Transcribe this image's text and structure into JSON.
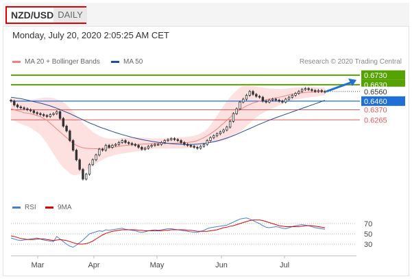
{
  "header": {
    "symbol": "NZD/USD",
    "period": "DAILY",
    "datetime": "Monday, July 20, 2020 2:05:25 AM CET"
  },
  "legend": {
    "ma20_bb": "MA 20 + Bollinger Bands",
    "ma50": "MA 50",
    "credit": "Research © 2020 Trading Central",
    "rsi": "RSI",
    "rsi_ma": "9MA"
  },
  "colors": {
    "ma20": "#f08080",
    "bollinger_fill": "#fde0e0",
    "ma50": "#1f4e9c",
    "rsi": "#4a7fd6",
    "rsi_ma": "#e00000",
    "resistance": "#55a300",
    "pivot": "#1f6fd6",
    "support": "#e85858",
    "candle": "#333333"
  },
  "chart_data": [
    {
      "type": "line",
      "title": "",
      "x_labels": [
        "Mar",
        "Apr",
        "May",
        "Jun",
        "Jul"
      ],
      "ylim": [
        0.545,
        0.68
      ],
      "levels": [
        {
          "value": 0.673,
          "label": "0.6730",
          "kind": "resistance"
        },
        {
          "value": 0.663,
          "label": "0.6630",
          "kind": "resistance"
        },
        {
          "value": 0.656,
          "label": "0.6560",
          "kind": "current"
        },
        {
          "value": 0.646,
          "label": "0.6460",
          "kind": "pivot"
        },
        {
          "value": 0.637,
          "label": "0.6370",
          "kind": "support"
        },
        {
          "value": 0.6265,
          "label": "0.6265",
          "kind": "support"
        }
      ],
      "close": [
        0.646,
        0.642,
        0.64,
        0.639,
        0.638,
        0.637,
        0.636,
        0.634,
        0.633,
        0.632,
        0.631,
        0.63,
        0.632,
        0.633,
        0.635,
        0.628,
        0.62,
        0.615,
        0.605,
        0.595,
        0.585,
        0.575,
        0.565,
        0.57,
        0.58,
        0.585,
        0.59,
        0.596,
        0.595,
        0.6,
        0.598,
        0.6,
        0.601,
        0.603,
        0.605,
        0.603,
        0.602,
        0.601,
        0.6,
        0.598,
        0.596,
        0.597,
        0.599,
        0.6,
        0.601,
        0.601,
        0.603,
        0.605,
        0.606,
        0.607,
        0.606,
        0.605,
        0.603,
        0.601,
        0.6,
        0.599,
        0.598,
        0.597,
        0.599,
        0.601,
        0.605,
        0.608,
        0.61,
        0.612,
        0.614,
        0.616,
        0.619,
        0.625,
        0.633,
        0.638,
        0.645,
        0.648,
        0.652,
        0.656,
        0.653,
        0.651,
        0.65,
        0.646,
        0.645,
        0.647,
        0.648,
        0.647,
        0.646,
        0.645,
        0.648,
        0.65,
        0.652,
        0.654,
        0.656,
        0.658,
        0.659,
        0.658,
        0.657,
        0.656,
        0.657,
        0.656,
        0.6555
      ],
      "series": [
        {
          "name": "MA 20 + Bollinger Bands",
          "values": [
            0.638,
            0.637,
            0.636,
            0.635,
            0.634,
            0.6335,
            0.633,
            0.632,
            0.631,
            0.63,
            0.628,
            0.626,
            0.623,
            0.62,
            0.617,
            0.614,
            0.611,
            0.608,
            0.605,
            0.602,
            0.6,
            0.5985,
            0.5975,
            0.597,
            0.5968,
            0.5966,
            0.5965,
            0.5966,
            0.5968,
            0.5972,
            0.5976,
            0.598,
            0.5985,
            0.599,
            0.5995,
            0.6,
            0.6003,
            0.6006,
            0.6008,
            0.601,
            0.6012,
            0.6014,
            0.6016,
            0.6018,
            0.602,
            0.602,
            0.602,
            0.602,
            0.6021,
            0.6022,
            0.6023,
            0.6024,
            0.6026,
            0.6028,
            0.603,
            0.6035,
            0.604,
            0.605,
            0.6065,
            0.608,
            0.61,
            0.612,
            0.6145,
            0.617,
            0.62,
            0.623,
            0.626,
            0.629,
            0.632,
            0.6345,
            0.637,
            0.639,
            0.641,
            0.6425,
            0.644,
            0.645,
            0.646,
            0.6468,
            0.6474,
            0.648,
            0.6486,
            0.6492,
            0.65,
            0.6508,
            0.6516,
            0.6524,
            0.6532,
            0.6538,
            0.6542,
            0.6546,
            0.655,
            0.6552,
            0.6554,
            0.6556,
            0.6557,
            0.6558,
            0.656
          ]
        },
        {
          "name": "MA 50",
          "values": [
            0.65,
            0.6495,
            0.649,
            0.6485,
            0.6478,
            0.647,
            0.6462,
            0.6454,
            0.6446,
            0.6438,
            0.643,
            0.642,
            0.641,
            0.6398,
            0.6386,
            0.6372,
            0.6358,
            0.6344,
            0.633,
            0.6314,
            0.6298,
            0.6282,
            0.6266,
            0.625,
            0.6234,
            0.622,
            0.6206,
            0.6192,
            0.618,
            0.6168,
            0.6156,
            0.6144,
            0.6133,
            0.6122,
            0.6112,
            0.6102,
            0.6093,
            0.6084,
            0.6076,
            0.6068,
            0.6061,
            0.6054,
            0.6048,
            0.6042,
            0.6037,
            0.6032,
            0.6028,
            0.6024,
            0.6021,
            0.6018,
            0.6015,
            0.6013,
            0.6011,
            0.601,
            0.601,
            0.601,
            0.6011,
            0.6013,
            0.6016,
            0.602,
            0.6025,
            0.6031,
            0.6038,
            0.6046,
            0.6055,
            0.6065,
            0.6076,
            0.6088,
            0.6101,
            0.6115,
            0.613,
            0.6145,
            0.616,
            0.6175,
            0.619,
            0.6205,
            0.622,
            0.6234,
            0.6248,
            0.6262,
            0.6275,
            0.6288,
            0.63,
            0.6312,
            0.6324,
            0.6336,
            0.6348,
            0.636,
            0.6372,
            0.6384,
            0.6396,
            0.6408,
            0.642,
            0.6432,
            0.6444,
            0.6456,
            0.6468
          ]
        }
      ],
      "band_upper": [
        0.649,
        0.6485,
        0.648,
        0.6475,
        0.647,
        0.647,
        0.6475,
        0.648,
        0.6485,
        0.649,
        0.6495,
        0.6498,
        0.6495,
        0.649,
        0.648,
        0.647,
        0.645,
        0.642,
        0.639,
        0.635,
        0.631,
        0.627,
        0.623,
        0.62,
        0.617,
        0.614,
        0.612,
        0.61,
        0.6085,
        0.6075,
        0.607,
        0.6068,
        0.6068,
        0.607,
        0.6075,
        0.608,
        0.6082,
        0.6083,
        0.6083,
        0.6082,
        0.608,
        0.6078,
        0.6076,
        0.6074,
        0.6073,
        0.6072,
        0.6072,
        0.6073,
        0.6075,
        0.6078,
        0.608,
        0.6082,
        0.6084,
        0.6086,
        0.609,
        0.6095,
        0.61,
        0.611,
        0.6125,
        0.6145,
        0.617,
        0.621,
        0.626,
        0.631,
        0.636,
        0.641,
        0.646,
        0.65,
        0.654,
        0.657,
        0.66,
        0.6615,
        0.662,
        0.662,
        0.6615,
        0.661,
        0.6605,
        0.66,
        0.6595,
        0.659,
        0.6588,
        0.6586,
        0.6585,
        0.6585,
        0.6588,
        0.6592,
        0.6596,
        0.66,
        0.6603,
        0.6605,
        0.6607,
        0.6607,
        0.6606,
        0.6604,
        0.6602,
        0.66,
        0.6598
      ],
      "band_lower": [
        0.627,
        0.6255,
        0.624,
        0.6225,
        0.621,
        0.62,
        0.6185,
        0.616,
        0.6135,
        0.611,
        0.6065,
        0.602,
        0.5965,
        0.591,
        0.586,
        0.581,
        0.577,
        0.574,
        0.571,
        0.569,
        0.569,
        0.57,
        0.572,
        0.574,
        0.5766,
        0.5792,
        0.581,
        0.5832,
        0.5851,
        0.5869,
        0.5882,
        0.5892,
        0.5902,
        0.591,
        0.5915,
        0.592,
        0.5924,
        0.5929,
        0.5933,
        0.5938,
        0.5944,
        0.595,
        0.5956,
        0.5962,
        0.5967,
        0.5968,
        0.5968,
        0.5967,
        0.5967,
        0.5966,
        0.5966,
        0.5966,
        0.5968,
        0.597,
        0.597,
        0.5975,
        0.598,
        0.599,
        0.6005,
        0.6015,
        0.603,
        0.603,
        0.603,
        0.603,
        0.604,
        0.605,
        0.606,
        0.608,
        0.61,
        0.612,
        0.614,
        0.6165,
        0.62,
        0.623,
        0.6265,
        0.629,
        0.6315,
        0.6336,
        0.6353,
        0.637,
        0.6384,
        0.6398,
        0.6415,
        0.6431,
        0.6444,
        0.6456,
        0.6468,
        0.6476,
        0.6481,
        0.6487,
        0.6493,
        0.6497,
        0.6502,
        0.6508,
        0.6512,
        0.6516,
        0.6522
      ],
      "forecast_arrow": {
        "from": 0.656,
        "to": 0.668
      }
    },
    {
      "type": "line",
      "title": "",
      "ylim": [
        10,
        90
      ],
      "y_ticks": [
        70,
        50,
        30
      ],
      "series": [
        {
          "name": "RSI",
          "values": [
            42,
            40,
            38,
            37,
            38,
            39,
            40,
            41,
            42,
            40,
            38,
            37,
            36,
            35,
            45,
            40,
            35,
            30,
            26,
            24,
            28,
            33,
            38,
            44,
            50,
            52,
            54,
            56,
            55,
            58,
            57,
            58,
            59,
            60,
            61,
            59,
            58,
            57,
            56,
            54,
            53,
            54,
            56,
            57,
            58,
            57,
            58,
            59,
            60,
            60,
            59,
            58,
            57,
            56,
            55,
            54,
            53,
            53,
            55,
            57,
            60,
            62,
            63,
            64,
            65,
            66,
            67,
            70,
            73,
            76,
            79,
            80,
            81,
            79,
            76,
            73,
            70,
            66,
            63,
            62,
            63,
            64,
            63,
            61,
            60,
            62,
            64,
            66,
            67,
            68,
            67,
            66,
            64,
            62,
            61,
            60,
            59
          ]
        },
        {
          "name": "9MA",
          "values": [
            46,
            45,
            43,
            41,
            40,
            39,
            39,
            39,
            40,
            40,
            40,
            39,
            38,
            37,
            38,
            39,
            38,
            37,
            35,
            33,
            31,
            30,
            30,
            31,
            33,
            36,
            40,
            44,
            48,
            51,
            53,
            55,
            56,
            57,
            58,
            58,
            58,
            58,
            58,
            57,
            57,
            56,
            56,
            56,
            56,
            56,
            56,
            57,
            57,
            58,
            58,
            58,
            58,
            58,
            57,
            57,
            56,
            55,
            55,
            55,
            55,
            56,
            57,
            58,
            60,
            62,
            63,
            65,
            66,
            68,
            70,
            72,
            74,
            76,
            77,
            77,
            77,
            76,
            74,
            72,
            70,
            68,
            66,
            65,
            64,
            64,
            64,
            64,
            64,
            65,
            66,
            66,
            66,
            65,
            64,
            63,
            62
          ]
        }
      ]
    }
  ]
}
